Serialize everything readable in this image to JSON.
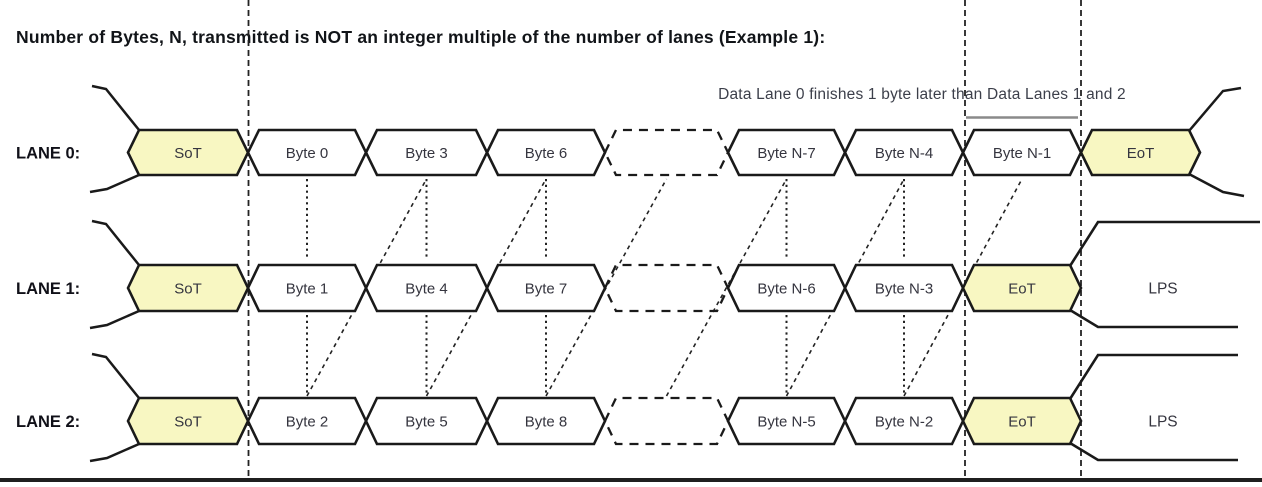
{
  "figure": {
    "title": "Number of Bytes, N, transmitted is NOT an integer multiple of the number of lanes (Example 1):",
    "annotation": "Data Lane 0 finishes 1 byte later than Data Lanes 1 and 2"
  },
  "lanes": [
    {
      "label": "LANE 0:",
      "after_label": "",
      "cells": [
        {
          "type": "sot",
          "label": "SoT"
        },
        {
          "type": "byte",
          "label": "Byte 0"
        },
        {
          "type": "byte",
          "label": "Byte 3"
        },
        {
          "type": "byte",
          "label": "Byte 6"
        },
        {
          "type": "gap",
          "label": ""
        },
        {
          "type": "byte",
          "label": "Byte N-7"
        },
        {
          "type": "byte",
          "label": "Byte N-4"
        },
        {
          "type": "byte",
          "label": "Byte N-1"
        },
        {
          "type": "eot",
          "label": "EoT"
        }
      ]
    },
    {
      "label": "LANE 1:",
      "after_label": "LPS",
      "cells": [
        {
          "type": "sot",
          "label": "SoT"
        },
        {
          "type": "byte",
          "label": "Byte 1"
        },
        {
          "type": "byte",
          "label": "Byte 4"
        },
        {
          "type": "byte",
          "label": "Byte 7"
        },
        {
          "type": "gap",
          "label": ""
        },
        {
          "type": "byte",
          "label": "Byte N-6"
        },
        {
          "type": "byte",
          "label": "Byte N-3"
        },
        {
          "type": "eot",
          "label": "EoT"
        }
      ]
    },
    {
      "label": "LANE 2:",
      "after_label": "LPS",
      "cells": [
        {
          "type": "sot",
          "label": "SoT"
        },
        {
          "type": "byte",
          "label": "Byte 2"
        },
        {
          "type": "byte",
          "label": "Byte 5"
        },
        {
          "type": "byte",
          "label": "Byte 8"
        },
        {
          "type": "gap",
          "label": ""
        },
        {
          "type": "byte",
          "label": "Byte N-5"
        },
        {
          "type": "byte",
          "label": "Byte N-2"
        },
        {
          "type": "eot",
          "label": "EoT"
        }
      ]
    }
  ],
  "colors": {
    "control_cell_fill": "#F8F7C2",
    "data_cell_fill": "#FFFFFF",
    "outline": "#1A1A1A",
    "cell_text": "#35353F",
    "lane_label_text": "#101018",
    "guide_line": "#222222",
    "annotation_underline": "#8A8A8A",
    "bottom_border": "#1F1F1F"
  }
}
